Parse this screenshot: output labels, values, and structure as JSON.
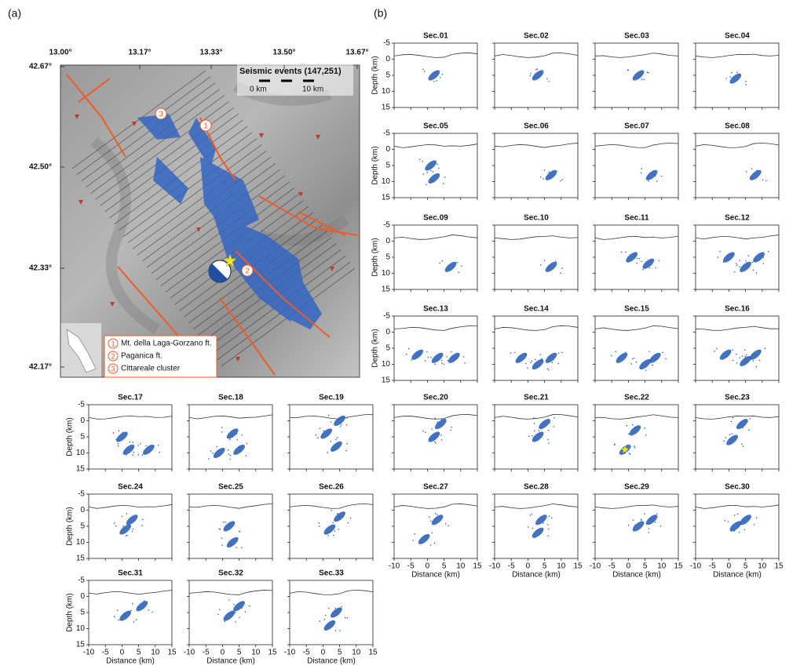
{
  "panel_a": {
    "label": "(a)",
    "lon_ticks": [
      "13.00°",
      "13.17°",
      "13.33°",
      "13.50°",
      "13.67°"
    ],
    "lat_ticks": [
      "42.67°",
      "42.50°",
      "42.33°",
      "42.17°"
    ],
    "events_title": "Seismic events (147,251)",
    "scale": [
      "0 km",
      "10 km"
    ],
    "legend": [
      {
        "num": "1",
        "text": "Mt. della Laga-Gorzano ft."
      },
      {
        "num": "2",
        "text": "Paganica ft."
      },
      {
        "num": "3",
        "text": "Cittareale cluster"
      }
    ]
  },
  "panel_b": {
    "label": "(b)",
    "x_label": "Distance (km)",
    "y_label": "Depth (km)",
    "xlim": [
      -10,
      15
    ],
    "ylim": [
      -5,
      15
    ],
    "xticks": [
      -10,
      -5,
      0,
      5,
      10,
      15
    ],
    "yticks": [
      -5,
      0,
      5,
      10,
      15
    ],
    "sections": [
      {
        "title": "Sec.01",
        "clusters": [
          [
            2,
            5
          ]
        ]
      },
      {
        "title": "Sec.02",
        "clusters": [
          [
            3,
            5
          ]
        ]
      },
      {
        "title": "Sec.03",
        "clusters": [
          [
            3,
            5
          ]
        ]
      },
      {
        "title": "Sec.04",
        "clusters": [
          [
            2,
            6
          ]
        ]
      },
      {
        "title": "Sec.05",
        "clusters": [
          [
            1,
            5
          ],
          [
            2,
            9
          ]
        ]
      },
      {
        "title": "Sec.06",
        "clusters": [
          [
            7,
            8
          ]
        ]
      },
      {
        "title": "Sec.07",
        "clusters": [
          [
            7,
            8
          ]
        ]
      },
      {
        "title": "Sec.08",
        "clusters": [
          [
            8,
            8
          ]
        ]
      },
      {
        "title": "Sec.09",
        "clusters": [
          [
            7,
            8
          ]
        ]
      },
      {
        "title": "Sec.10",
        "clusters": [
          [
            7,
            8
          ]
        ]
      },
      {
        "title": "Sec.11",
        "clusters": [
          [
            1,
            5
          ],
          [
            6,
            7
          ]
        ]
      },
      {
        "title": "Sec.12",
        "clusters": [
          [
            0,
            5
          ],
          [
            5,
            8
          ],
          [
            9,
            5
          ]
        ]
      },
      {
        "title": "Sec.13",
        "clusters": [
          [
            -3,
            7
          ],
          [
            3,
            8
          ],
          [
            8,
            8
          ]
        ]
      },
      {
        "title": "Sec.14",
        "clusters": [
          [
            -2,
            8
          ],
          [
            3,
            10
          ],
          [
            7,
            8
          ]
        ]
      },
      {
        "title": "Sec.15",
        "clusters": [
          [
            -2,
            8
          ],
          [
            5,
            10
          ],
          [
            8,
            8
          ]
        ]
      },
      {
        "title": "Sec.16",
        "clusters": [
          [
            -1,
            7
          ],
          [
            5,
            9
          ],
          [
            8,
            7
          ]
        ]
      },
      {
        "title": "Sec.17",
        "clusters": [
          [
            0,
            5
          ],
          [
            2,
            9
          ],
          [
            8,
            9
          ]
        ]
      },
      {
        "title": "Sec.18",
        "clusters": [
          [
            3,
            4
          ],
          [
            -1,
            10
          ],
          [
            5,
            9
          ]
        ]
      },
      {
        "title": "Sec.19",
        "clusters": [
          [
            1,
            4
          ],
          [
            5,
            0
          ],
          [
            4,
            8
          ]
        ]
      },
      {
        "title": "Sec.20",
        "clusters": [
          [
            2,
            5
          ],
          [
            4,
            1
          ]
        ]
      },
      {
        "title": "Sec.21",
        "clusters": [
          [
            3,
            5
          ],
          [
            5,
            1
          ]
        ]
      },
      {
        "title": "Sec.22",
        "clusters": [
          [
            -1,
            9
          ],
          [
            2,
            3
          ]
        ]
      },
      {
        "title": "Sec.23",
        "clusters": [
          [
            1,
            6
          ],
          [
            4,
            1
          ]
        ]
      },
      {
        "title": "Sec.24",
        "clusters": [
          [
            1,
            6
          ],
          [
            3,
            3
          ]
        ]
      },
      {
        "title": "Sec.25",
        "clusters": [
          [
            2,
            5
          ],
          [
            3,
            10
          ]
        ]
      },
      {
        "title": "Sec.26",
        "clusters": [
          [
            2,
            6
          ],
          [
            5,
            2
          ]
        ]
      },
      {
        "title": "Sec.27",
        "clusters": [
          [
            3,
            3
          ],
          [
            -1,
            9
          ]
        ]
      },
      {
        "title": "Sec.28",
        "clusters": [
          [
            4,
            3
          ],
          [
            3,
            7
          ]
        ]
      },
      {
        "title": "Sec.29",
        "clusters": [
          [
            3,
            5
          ],
          [
            7,
            3
          ]
        ]
      },
      {
        "title": "Sec.30",
        "clusters": [
          [
            2,
            5
          ],
          [
            5,
            3
          ]
        ]
      },
      {
        "title": "Sec.31",
        "clusters": [
          [
            1,
            6
          ],
          [
            6,
            3
          ]
        ]
      },
      {
        "title": "Sec.32",
        "clusters": [
          [
            2,
            6
          ],
          [
            5,
            3
          ]
        ]
      },
      {
        "title": "Sec.33",
        "clusters": [
          [
            2,
            9
          ],
          [
            4,
            5
          ]
        ]
      }
    ]
  }
}
